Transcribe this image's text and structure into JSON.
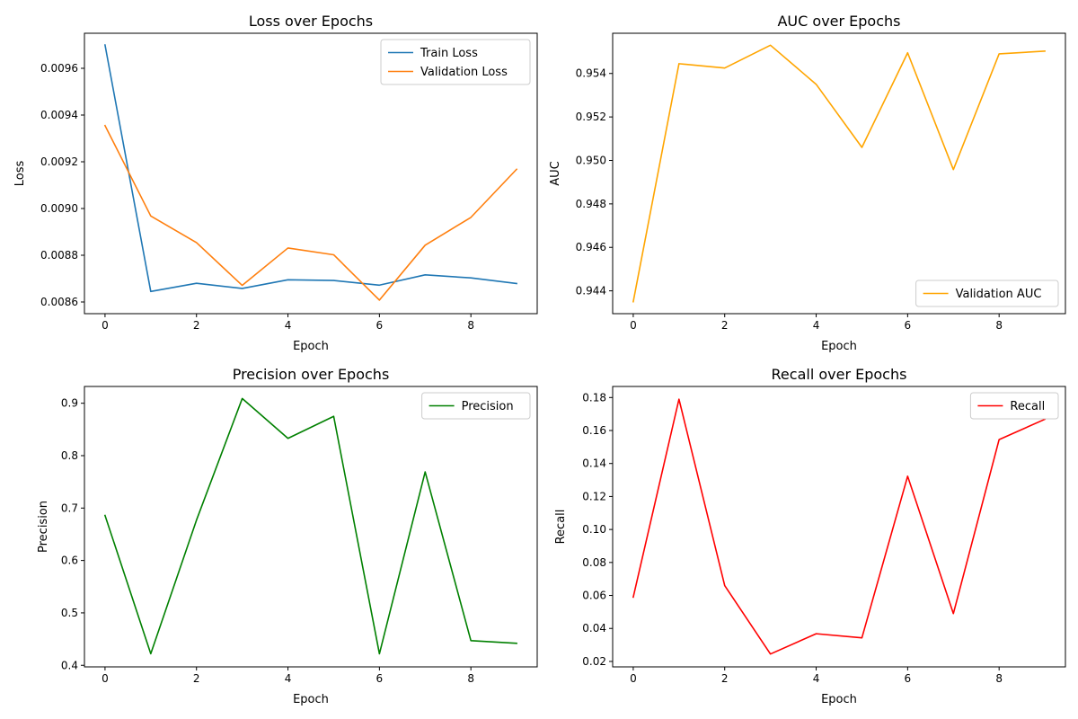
{
  "chart_data": [
    {
      "type": "line",
      "title": "Loss over Epochs",
      "xlabel": "Epoch",
      "ylabel": "Loss",
      "xlim": [
        -0.45,
        9.45
      ],
      "ylim": [
        0.00855,
        0.00975
      ],
      "xticks": [
        0,
        2,
        4,
        6,
        8
      ],
      "xtick_labels": [
        "0",
        "2",
        "4",
        "6",
        "8"
      ],
      "yticks": [
        0.0086,
        0.0088,
        0.009,
        0.0092,
        0.0094,
        0.0096
      ],
      "ytick_labels": [
        "0.0086",
        "0.0088",
        "0.0090",
        "0.0092",
        "0.0094",
        "0.0096"
      ],
      "legend_position": "top-right",
      "x": [
        0,
        1,
        2,
        3,
        4,
        5,
        6,
        7,
        8,
        9
      ],
      "series": [
        {
          "name": "Train Loss",
          "color": "#1f77b4",
          "values": [
            0.0097,
            0.008645,
            0.00868,
            0.008658,
            0.008695,
            0.008692,
            0.008672,
            0.008716,
            0.008703,
            0.008679
          ]
        },
        {
          "name": "Validation Loss",
          "color": "#ff7f0e",
          "values": [
            0.009355,
            0.008968,
            0.008854,
            0.008671,
            0.008831,
            0.008802,
            0.008608,
            0.008843,
            0.008962,
            0.009168
          ]
        }
      ]
    },
    {
      "type": "line",
      "title": "AUC over Epochs",
      "xlabel": "Epoch",
      "ylabel": "AUC",
      "xlim": [
        -0.45,
        9.45
      ],
      "ylim": [
        0.94295,
        0.95585
      ],
      "xticks": [
        0,
        2,
        4,
        6,
        8
      ],
      "xtick_labels": [
        "0",
        "2",
        "4",
        "6",
        "8"
      ],
      "yticks": [
        0.944,
        0.946,
        0.948,
        0.95,
        0.952,
        0.954
      ],
      "ytick_labels": [
        "0.944",
        "0.946",
        "0.948",
        "0.950",
        "0.952",
        "0.954"
      ],
      "legend_position": "bottom-right",
      "x": [
        0,
        1,
        2,
        3,
        4,
        5,
        6,
        7,
        8,
        9
      ],
      "series": [
        {
          "name": "Validation AUC",
          "color": "#ffa500",
          "values": [
            0.9435,
            0.95445,
            0.95425,
            0.9553,
            0.9535,
            0.9506,
            0.95495,
            0.94958,
            0.9549,
            0.95503
          ]
        }
      ]
    },
    {
      "type": "line",
      "title": "Precision over Epochs",
      "xlabel": "Epoch",
      "ylabel": "Precision",
      "xlim": [
        -0.45,
        9.45
      ],
      "ylim": [
        0.397,
        0.932
      ],
      "xticks": [
        0,
        2,
        4,
        6,
        8
      ],
      "xtick_labels": [
        "0",
        "2",
        "4",
        "6",
        "8"
      ],
      "yticks": [
        0.4,
        0.5,
        0.6,
        0.7,
        0.8,
        0.9
      ],
      "ytick_labels": [
        "0.4",
        "0.5",
        "0.6",
        "0.7",
        "0.8",
        "0.9"
      ],
      "legend_position": "top-right",
      "x": [
        0,
        1,
        2,
        3,
        4,
        5,
        6,
        7,
        8,
        9
      ],
      "series": [
        {
          "name": "Precision",
          "color": "#008000",
          "values": [
            0.686,
            0.422,
            0.677,
            0.909,
            0.833,
            0.875,
            0.422,
            0.769,
            0.447,
            0.442
          ]
        }
      ]
    },
    {
      "type": "line",
      "title": "Recall over Epochs",
      "xlabel": "Epoch",
      "ylabel": "Recall",
      "xlim": [
        -0.45,
        9.45
      ],
      "ylim": [
        0.0167,
        0.1867
      ],
      "xticks": [
        0,
        2,
        4,
        6,
        8
      ],
      "xtick_labels": [
        "0",
        "2",
        "4",
        "6",
        "8"
      ],
      "yticks": [
        0.02,
        0.04,
        0.06,
        0.08,
        0.1,
        0.12,
        0.14,
        0.16,
        0.18
      ],
      "ytick_labels": [
        "0.02",
        "0.04",
        "0.06",
        "0.08",
        "0.10",
        "0.12",
        "0.14",
        "0.16",
        "0.18"
      ],
      "legend_position": "top-right",
      "x": [
        0,
        1,
        2,
        3,
        4,
        5,
        6,
        7,
        8,
        9
      ],
      "series": [
        {
          "name": "Recall",
          "color": "#ff0000",
          "values": [
            0.059,
            0.179,
            0.066,
            0.0245,
            0.0368,
            0.0343,
            0.1323,
            0.049,
            0.1545,
            0.1668
          ]
        }
      ]
    }
  ]
}
